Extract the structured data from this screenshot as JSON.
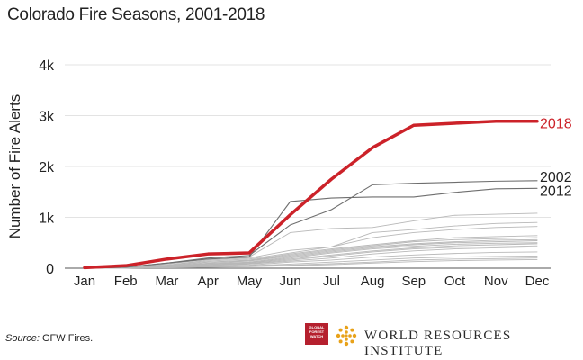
{
  "title": "Colorado Fire Seasons, 2001-2018",
  "source": {
    "label": "Source:",
    "text": "GFW Fires."
  },
  "logos": {
    "gfw_lines": [
      "GLOBAL",
      "FOREST",
      "WATCH"
    ],
    "wri_name": "WORLD RESOURCES INSTITUTE"
  },
  "colors": {
    "highlight": "#cc2229",
    "background_series": "#b8b8b8",
    "labeled_series": "#6e6e6e"
  },
  "chart_data": {
    "type": "line",
    "title": "Colorado Fire Seasons, 2001-2018",
    "xlabel": "",
    "ylabel": "Number of Fire Alerts",
    "categories": [
      "Jan",
      "Feb",
      "Mar",
      "Apr",
      "May",
      "Jun",
      "Jul",
      "Aug",
      "Sep",
      "Oct",
      "Nov",
      "Dec"
    ],
    "ylim": [
      0,
      4000
    ],
    "yticks": [
      0,
      1000,
      2000,
      3000,
      4000
    ],
    "ytick_labels": [
      "0",
      "1k",
      "2k",
      "3k",
      "4k"
    ],
    "grid": true,
    "series": [
      {
        "name": "2018",
        "highlight": true,
        "values": [
          10,
          50,
          180,
          280,
          300,
          1050,
          1750,
          2370,
          2810,
          2850,
          2890,
          2890
        ]
      },
      {
        "name": "2002",
        "labeled": true,
        "values": [
          0,
          20,
          100,
          200,
          250,
          850,
          1150,
          1640,
          1670,
          1690,
          1710,
          1720
        ]
      },
      {
        "name": "2012",
        "labeled": true,
        "values": [
          0,
          20,
          100,
          180,
          220,
          1310,
          1380,
          1400,
          1400,
          1490,
          1560,
          1570
        ]
      },
      {
        "values": [
          0,
          10,
          80,
          180,
          220,
          700,
          780,
          800,
          930,
          1040,
          1060,
          1080
        ]
      },
      {
        "values": [
          0,
          10,
          60,
          160,
          200,
          350,
          420,
          700,
          760,
          830,
          880,
          900
        ]
      },
      {
        "values": [
          0,
          10,
          60,
          140,
          180,
          300,
          420,
          600,
          700,
          760,
          800,
          820
        ]
      },
      {
        "values": [
          0,
          10,
          50,
          120,
          160,
          280,
          380,
          460,
          540,
          600,
          620,
          640
        ]
      },
      {
        "values": [
          0,
          10,
          50,
          120,
          150,
          260,
          360,
          440,
          520,
          560,
          580,
          600
        ]
      },
      {
        "values": [
          0,
          10,
          40,
          100,
          140,
          240,
          340,
          420,
          480,
          520,
          550,
          560
        ]
      },
      {
        "values": [
          0,
          10,
          40,
          90,
          120,
          220,
          320,
          400,
          460,
          500,
          520,
          540
        ]
      },
      {
        "values": [
          0,
          5,
          30,
          80,
          110,
          200,
          300,
          380,
          430,
          470,
          490,
          500
        ]
      },
      {
        "values": [
          0,
          5,
          30,
          70,
          100,
          180,
          260,
          340,
          400,
          440,
          460,
          480
        ]
      },
      {
        "values": [
          0,
          5,
          20,
          60,
          90,
          160,
          240,
          320,
          380,
          410,
          420,
          440
        ]
      },
      {
        "values": [
          0,
          5,
          20,
          50,
          80,
          140,
          200,
          280,
          340,
          380,
          400,
          420
        ]
      },
      {
        "values": [
          0,
          5,
          20,
          40,
          60,
          120,
          160,
          220,
          260,
          290,
          310,
          320
        ]
      },
      {
        "values": [
          0,
          5,
          10,
          30,
          50,
          80,
          120,
          160,
          200,
          220,
          230,
          240
        ]
      },
      {
        "values": [
          0,
          5,
          10,
          20,
          40,
          60,
          90,
          120,
          160,
          180,
          190,
          200
        ]
      },
      {
        "values": [
          0,
          5,
          10,
          20,
          30,
          50,
          70,
          100,
          130,
          150,
          160,
          170
        ]
      }
    ]
  }
}
